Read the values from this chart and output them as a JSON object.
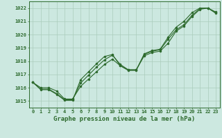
{
  "x": [
    0,
    1,
    2,
    3,
    4,
    5,
    6,
    7,
    8,
    9,
    10,
    11,
    12,
    13,
    14,
    15,
    16,
    17,
    18,
    19,
    20,
    21,
    22,
    23
  ],
  "line1": [
    1016.4,
    1016.0,
    1016.0,
    1015.75,
    1015.15,
    1015.15,
    1016.1,
    1016.65,
    1017.2,
    1017.75,
    1018.15,
    1017.65,
    1017.35,
    1017.35,
    1018.4,
    1018.65,
    1018.75,
    1019.35,
    1020.25,
    1020.65,
    1021.35,
    1021.9,
    1022.0,
    1021.7
  ],
  "line2": [
    1016.4,
    1015.9,
    1015.9,
    1015.55,
    1015.1,
    1015.1,
    1016.35,
    1016.95,
    1017.55,
    1018.1,
    1018.45,
    1017.75,
    1017.35,
    1017.35,
    1018.5,
    1018.75,
    1018.85,
    1019.65,
    1020.35,
    1020.75,
    1021.45,
    1021.95,
    1022.0,
    1021.65
  ],
  "line3": [
    1016.4,
    1015.85,
    1015.85,
    1015.5,
    1015.05,
    1015.05,
    1016.6,
    1017.2,
    1017.8,
    1018.35,
    1018.5,
    1017.65,
    1017.3,
    1017.3,
    1018.55,
    1018.8,
    1018.9,
    1019.8,
    1020.55,
    1021.0,
    1021.65,
    1022.0,
    1022.0,
    1021.6
  ],
  "ylim": [
    1014.5,
    1022.5
  ],
  "yticks": [
    1015,
    1016,
    1017,
    1018,
    1019,
    1020,
    1021,
    1022
  ],
  "xticks": [
    0,
    1,
    2,
    3,
    4,
    5,
    6,
    7,
    8,
    9,
    10,
    11,
    12,
    13,
    14,
    15,
    16,
    17,
    18,
    19,
    20,
    21,
    22,
    23
  ],
  "xlabel": "Graphe pression niveau de la mer (hPa)",
  "line_color": "#2d6a2d",
  "bg_color": "#cce8e0",
  "grid_color": "#aaccbb",
  "tick_fontsize": 5.0,
  "xlabel_fontsize": 6.5,
  "marker_size": 2.2,
  "linewidth": 0.8
}
